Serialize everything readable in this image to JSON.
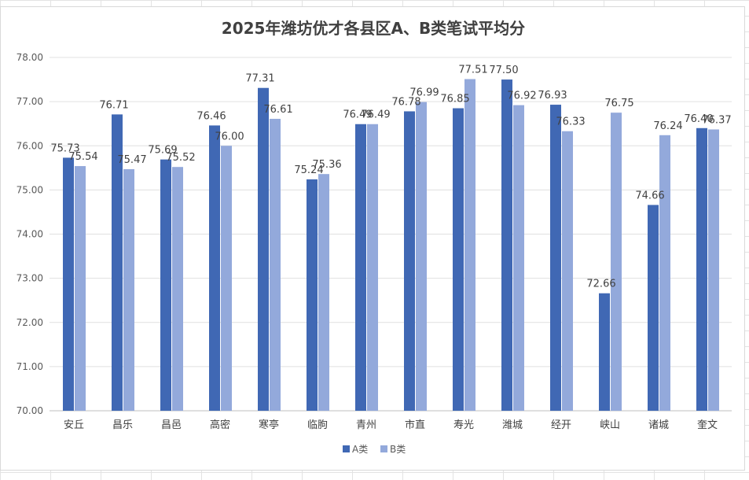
{
  "chart_data": {
    "type": "bar",
    "title": "2025年潍坊优才各县区A、B类笔试平均分",
    "categories": [
      "安丘",
      "昌乐",
      "昌邑",
      "高密",
      "寒亭",
      "临朐",
      "青州",
      "市直",
      "寿光",
      "潍城",
      "经开",
      "峡山",
      "诸城",
      "奎文"
    ],
    "series": [
      {
        "name": "A类",
        "color": "#4068b4",
        "values": [
          75.73,
          76.71,
          75.69,
          76.46,
          77.31,
          75.24,
          76.49,
          76.78,
          76.85,
          77.5,
          76.93,
          72.66,
          74.66,
          76.4
        ]
      },
      {
        "name": "B类",
        "color": "#93a9db",
        "values": [
          75.54,
          75.47,
          75.52,
          76.0,
          76.61,
          75.36,
          76.49,
          76.99,
          77.51,
          76.92,
          76.33,
          76.75,
          76.24,
          76.37
        ]
      }
    ],
    "ylim": [
      70,
      78
    ],
    "yticks": [
      "70.00",
      "71.00",
      "72.00",
      "73.00",
      "74.00",
      "75.00",
      "76.00",
      "77.00",
      "78.00"
    ],
    "grid": true,
    "legend_position": "bottom",
    "xlabel": "",
    "ylabel": ""
  }
}
